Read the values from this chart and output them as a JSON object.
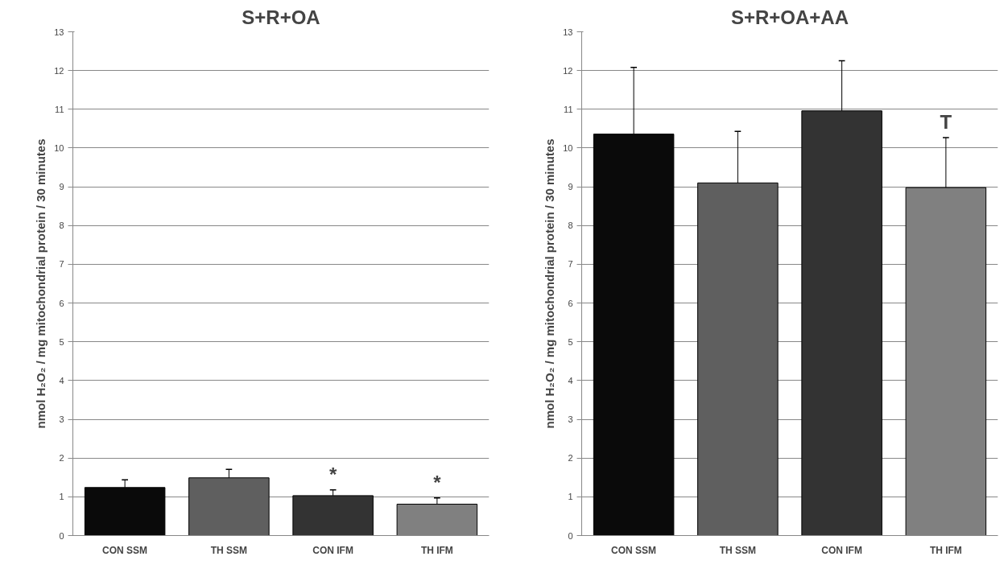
{
  "chart_data": [
    {
      "type": "bar",
      "title": "S+R+OA",
      "ylabel": "nmol H₂O₂ / mg mitochondrial protein / 30 minutes",
      "categories": [
        "CON SSM",
        "TH SSM",
        "CON IFM",
        "TH IFM"
      ],
      "values": [
        1.24,
        1.49,
        1.03,
        0.81
      ],
      "colors": [
        "#0a0a0a",
        "#5f5f5f",
        "#333333",
        "#808080"
      ],
      "errors": [
        [
          1.24,
          1.44
        ],
        [
          1.49,
          1.71
        ],
        [
          1.03,
          1.18
        ],
        [
          0.81,
          0.97
        ]
      ],
      "ylim": [
        0,
        13
      ],
      "yticks": [
        0,
        1,
        2,
        3,
        4,
        5,
        6,
        7,
        8,
        9,
        10,
        11,
        12,
        13
      ],
      "grid": "y",
      "annotations": [
        {
          "text": "*",
          "x": "CON IFM",
          "y": 1.03
        },
        {
          "text": "*",
          "x": "TH IFM",
          "y": 0.81
        }
      ]
    },
    {
      "type": "bar",
      "title": "S+R+OA+AA",
      "ylabel": "nmol H₂O₂ / mg mitochondrial protein / 30 minutes",
      "categories": [
        "CON SSM",
        "TH SSM",
        "CON IFM",
        "TH IFM"
      ],
      "values": [
        10.36,
        9.1,
        10.96,
        8.98
      ],
      "colors": [
        "#0a0a0a",
        "#5f5f5f",
        "#333333",
        "#808080"
      ],
      "errors": [
        [
          10.36,
          12.08
        ],
        [
          9.1,
          10.43
        ],
        [
          10.96,
          12.25
        ],
        [
          8.98,
          10.27
        ]
      ],
      "ylim": [
        0,
        13
      ],
      "yticks": [
        0,
        1,
        2,
        3,
        4,
        5,
        6,
        7,
        8,
        9,
        10,
        11,
        12,
        13
      ],
      "grid": "y",
      "annotations": [
        {
          "text": "T",
          "x": "TH IFM",
          "y": 8.98
        }
      ]
    }
  ]
}
